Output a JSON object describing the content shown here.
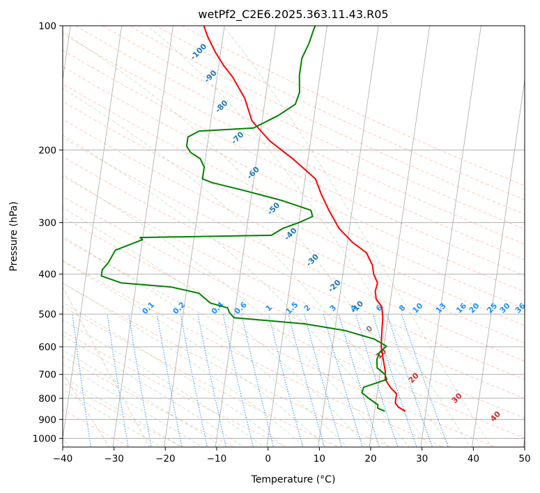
{
  "chart_data": {
    "type": "line",
    "title": "wetPf2_C2E6.2025.363.11.43.R05",
    "xlabel": "Temperature (°C)",
    "ylabel": "Pressure (hPa)",
    "xlim": [
      -40,
      50
    ],
    "ylim": [
      1050,
      100
    ],
    "y_scale": "log",
    "x_ticks": [
      "−40",
      "−30",
      "−20",
      "−10",
      "0",
      "10",
      "20",
      "30",
      "40",
      "50"
    ],
    "y_ticks": [
      {
        "p": 100,
        "label": "100"
      },
      {
        "p": 200,
        "label": "200"
      },
      {
        "p": 300,
        "label": "300"
      },
      {
        "p": 400,
        "label": "400"
      },
      {
        "p": 500,
        "label": "500"
      },
      {
        "p": 600,
        "label": "600"
      },
      {
        "p": 700,
        "label": "700"
      },
      {
        "p": 800,
        "label": "800"
      },
      {
        "p": 900,
        "label": "900"
      },
      {
        "p": 1000,
        "label": "1000"
      }
    ],
    "grid": true,
    "series": [
      {
        "role": "temperature",
        "color": "#ff0000",
        "points": [
          [
            860,
            26.0
          ],
          [
            840,
            24.5
          ],
          [
            820,
            23.8
          ],
          [
            780,
            23.8
          ],
          [
            755,
            22.5
          ],
          [
            720,
            21.2
          ],
          [
            690,
            21.0
          ],
          [
            600,
            19.5
          ],
          [
            550,
            19.2
          ],
          [
            510,
            19.0
          ],
          [
            480,
            18.5
          ],
          [
            460,
            17.2
          ],
          [
            440,
            16.8
          ],
          [
            420,
            17.0
          ],
          [
            400,
            16.0
          ],
          [
            380,
            15.5
          ],
          [
            355,
            14.0
          ],
          [
            335,
            11.0
          ],
          [
            310,
            8.0
          ],
          [
            280,
            5.5
          ],
          [
            255,
            3.5
          ],
          [
            235,
            2.0
          ],
          [
            210,
            -3.0
          ],
          [
            190,
            -8.0
          ],
          [
            170,
            -12.0
          ],
          [
            150,
            -14.0
          ],
          [
            133,
            -17.0
          ],
          [
            125,
            -19.0
          ],
          [
            116,
            -21.0
          ],
          [
            106,
            -23.0
          ],
          [
            100,
            -24.0
          ]
        ]
      },
      {
        "role": "dewpoint",
        "color": "#008000",
        "points": [
          [
            860,
            22.0
          ],
          [
            845,
            20.5
          ],
          [
            830,
            20.5
          ],
          [
            800,
            18.5
          ],
          [
            775,
            17.0
          ],
          [
            752,
            17.2
          ],
          [
            735,
            19.5
          ],
          [
            720,
            21.5
          ],
          [
            700,
            21.0
          ],
          [
            675,
            19.3
          ],
          [
            645,
            19.0
          ],
          [
            620,
            19.3
          ],
          [
            598,
            20.5
          ],
          [
            575,
            18.0
          ],
          [
            548,
            12.0
          ],
          [
            528,
            4.0
          ],
          [
            510,
            -10.0
          ],
          [
            496,
            -11.0
          ],
          [
            483,
            -11.5
          ],
          [
            470,
            -15.0
          ],
          [
            445,
            -17.5
          ],
          [
            430,
            -23.0
          ],
          [
            420,
            -33.0
          ],
          [
            404,
            -37.0
          ],
          [
            390,
            -37.0
          ],
          [
            375,
            -36.0
          ],
          [
            350,
            -35.0
          ],
          [
            330,
            -30.0
          ],
          [
            326,
            -30.5
          ],
          [
            322,
            -5.0
          ],
          [
            310,
            -3.0
          ],
          [
            300,
            0.0
          ],
          [
            290,
            2.5
          ],
          [
            280,
            2.0
          ],
          [
            265,
            -4.0
          ],
          [
            250,
            -12.0
          ],
          [
            240,
            -18.0
          ],
          [
            235,
            -20.0
          ],
          [
            220,
            -20.0
          ],
          [
            210,
            -21.0
          ],
          [
            203,
            -23.0
          ],
          [
            196,
            -24.0
          ],
          [
            186,
            -24.0
          ],
          [
            180,
            -22.0
          ],
          [
            177,
            -11.5
          ],
          [
            165,
            -7.0
          ],
          [
            155,
            -4.0
          ],
          [
            145,
            -3.5
          ],
          [
            132,
            -4.0
          ],
          [
            120,
            -4.0
          ],
          [
            110,
            -3.0
          ],
          [
            102,
            -2.5
          ],
          [
            100,
            -2.3
          ]
        ]
      }
    ],
    "background_lines": [
      {
        "type": "isotherms",
        "color": "#aaaaaa"
      },
      {
        "type": "dry adiabats",
        "color": "#ff8866"
      },
      {
        "type": "moist adiabats",
        "color": "#77bb77"
      },
      {
        "type": "mixing ratio",
        "color": "#1e90ff"
      },
      {
        "type": "frost point",
        "color": "#d2b48c"
      }
    ],
    "annotations": {
      "dewpoint_labels": [
        {
          "text": "-100",
          "p": 115,
          "t": -24
        },
        {
          "text": "-90",
          "p": 132,
          "t": -21
        },
        {
          "text": "-80",
          "p": 156,
          "t": -18
        },
        {
          "text": "-70",
          "p": 186,
          "t": -14
        },
        {
          "text": "-60",
          "p": 226,
          "t": -10
        },
        {
          "text": "-50",
          "p": 276,
          "t": -5
        },
        {
          "text": "-40",
          "p": 318,
          "t": -1
        },
        {
          "text": "-30",
          "p": 368,
          "t": 4
        },
        {
          "text": "-20",
          "p": 425,
          "t": 9
        },
        {
          "text": "-10",
          "p": 478,
          "t": 14
        },
        {
          "text": "0",
          "p": 540,
          "t": 17
        }
      ],
      "dry_adiabat_labels": [
        {
          "text": "10",
          "p": 620,
          "t": 20
        },
        {
          "text": "20",
          "p": 710,
          "t": 27
        },
        {
          "text": "30",
          "p": 795,
          "t": 36
        },
        {
          "text": "40",
          "p": 880,
          "t": 44
        }
      ],
      "mixing_ratio_labels": [
        {
          "text": "0.1",
          "t": -23
        },
        {
          "text": "0.2",
          "t": -17
        },
        {
          "text": "0.4",
          "t": -9.5
        },
        {
          "text": "0.6",
          "t": -5
        },
        {
          "text": "1",
          "t": 0.5
        },
        {
          "text": "1.5",
          "t": 5
        },
        {
          "text": "2",
          "t": 8
        },
        {
          "text": "3",
          "t": 13
        },
        {
          "text": "4",
          "t": 17
        },
        {
          "text": "6",
          "t": 22
        },
        {
          "text": "8",
          "t": 26.5
        },
        {
          "text": "10",
          "t": 29.5
        },
        {
          "text": "13",
          "t": 34
        },
        {
          "text": "16",
          "t": 38
        },
        {
          "text": "20",
          "t": 40.5
        },
        {
          "text": "25",
          "t": 44
        },
        {
          "text": "30",
          "t": 46.5
        },
        {
          "text": "36",
          "t": 49.5
        }
      ]
    }
  }
}
